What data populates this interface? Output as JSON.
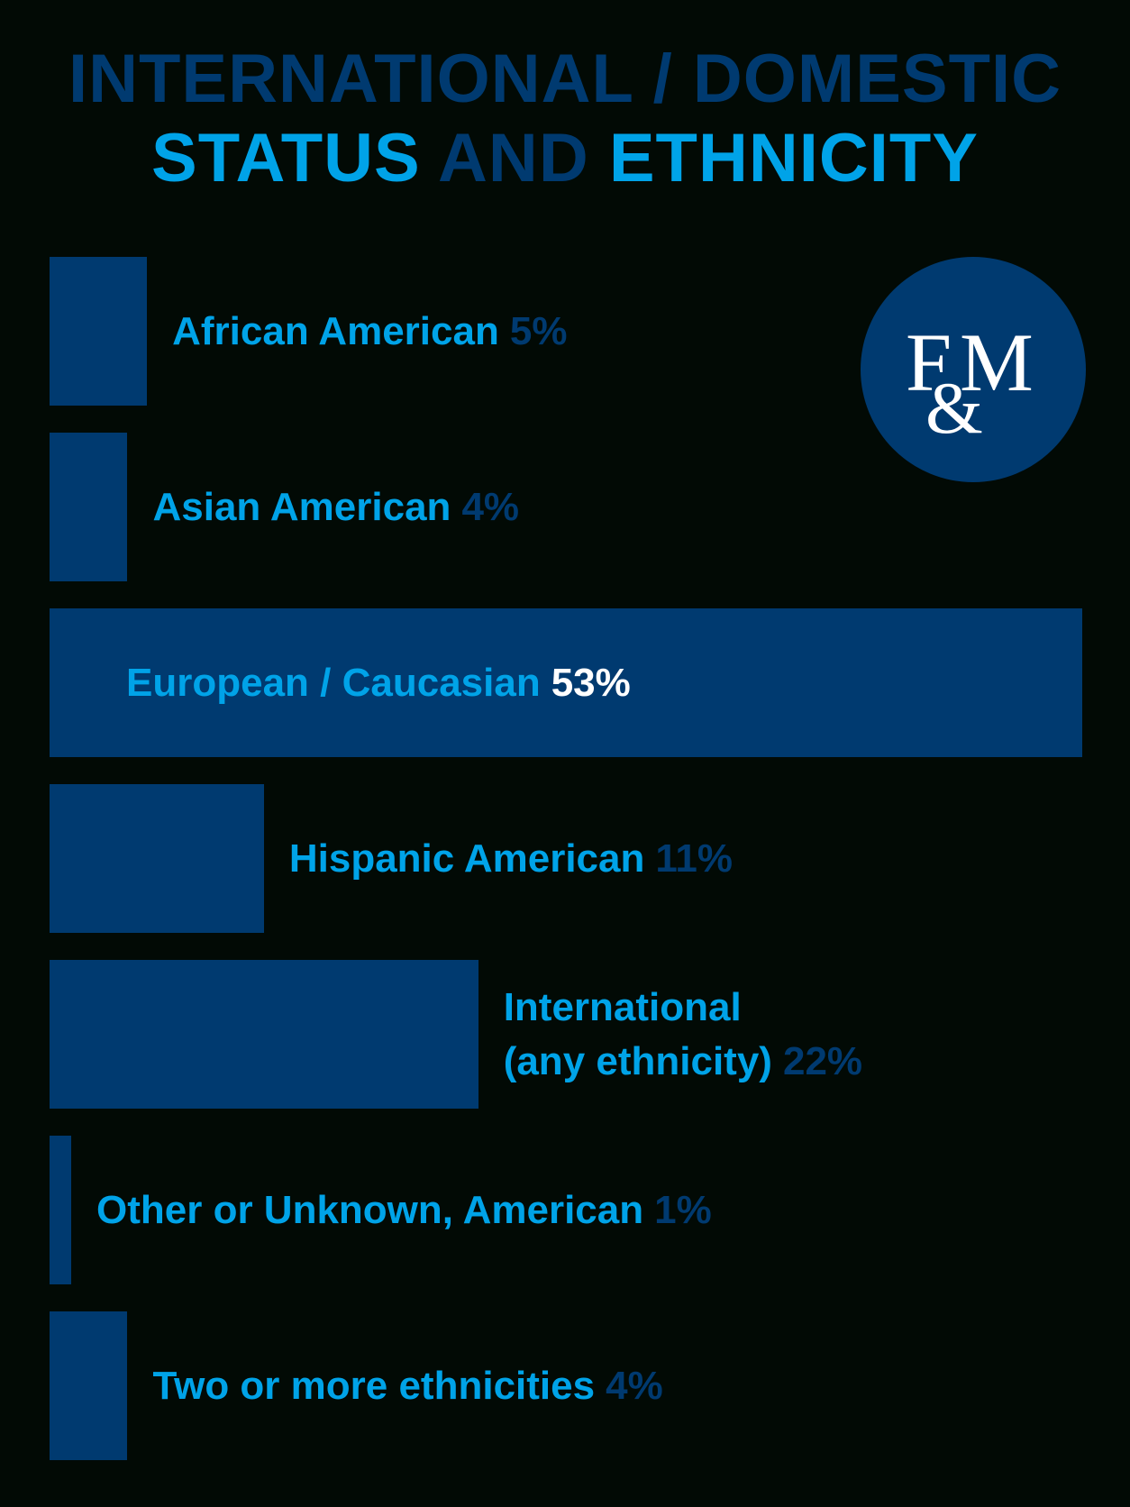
{
  "colors": {
    "background": "#020a05",
    "bar": "#003a70",
    "accent_light": "#00a3e8",
    "accent_dark": "#003a70",
    "highlight": "#ffffff"
  },
  "header": {
    "line1": "INTERNATIONAL / DOMESTIC",
    "line2_part1": "STATUS",
    "line2_part2": "AND",
    "line2_part3": "ETHNICITY"
  },
  "logo": {
    "text_top": "F",
    "text_mid": "M",
    "text_amp": "&",
    "icon": "fm-monogram-logo"
  },
  "chart_data": {
    "type": "bar",
    "orientation": "horizontal",
    "title": "INTERNATIONAL / DOMESTIC STATUS AND ETHNICITY",
    "categories": [
      "African American",
      "Asian American",
      "European / Caucasian",
      "Hispanic American",
      "International (any ethnicity)",
      "Other or Unknown, American",
      "Two or more ethnicities"
    ],
    "values": [
      5,
      4,
      53,
      11,
      22,
      1,
      4
    ],
    "value_labels": [
      "5%",
      "4%",
      "53%",
      "11%",
      "22%",
      "1%",
      "4%"
    ],
    "xlim": [
      0,
      53
    ],
    "grid": false
  }
}
